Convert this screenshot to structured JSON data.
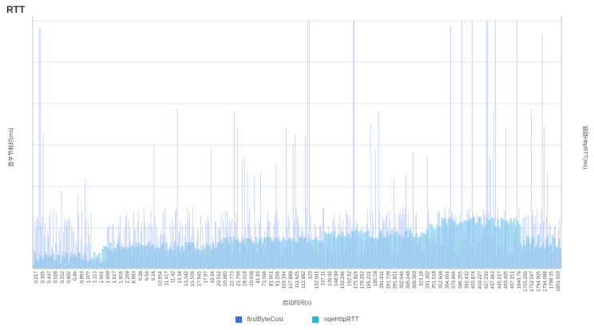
{
  "chart_data": {
    "type": "bar",
    "title": "RTT",
    "xlabel": "启动时间(s)",
    "ylabel_left": "首字节耗时(ms)",
    "ylabel_right": "链路HttpRTT(ms)",
    "x_ticks": [
      "0.217",
      "0.305",
      "0.447",
      "0.528",
      "0.552",
      "0.602",
      "0.86",
      "0.893",
      "1.077",
      "1.113",
      "1.601",
      "1.609",
      "1.917",
      "1.956",
      "2.269",
      "8.993",
      "9.08",
      "9.56",
      "9.16",
      "10.654",
      "11.417",
      "11.42",
      "13.34",
      "13.342",
      "15.509",
      "17.945",
      "17.97",
      "19.94",
      "20.512",
      "20.983",
      "22.773",
      "23.769",
      "28.418",
      "29.438",
      "41.93",
      "73.596",
      "81.661",
      "91.266",
      "103.194",
      "107.888",
      "111.625",
      "112.982",
      "123",
      "132.041",
      "137.11",
      "139.92",
      "148.99",
      "153.246",
      "162.92",
      "175.024",
      "179.262",
      "185.221",
      "185.58",
      "291.811",
      "291.729",
      "291.831",
      "302.646",
      "305.248",
      "309.369",
      "323.19",
      "341.302",
      "351.518",
      "352.608",
      "364.691",
      "370.966",
      "386.255",
      "392.432",
      "403.874",
      "419.227",
      "427.232",
      "437.963",
      "445.617",
      "460.405",
      "467.151",
      "1640.76",
      "1755.209",
      "1752.567",
      "1794.005",
      "1794.688",
      "1798.35",
      "1801.559"
    ],
    "grid": true,
    "legend_position": "bottom",
    "series": [
      {
        "name": "firstByteCost",
        "color": "#3b6fde"
      },
      {
        "name": "nqeHttpRTT",
        "color": "#1fb8d9"
      }
    ]
  }
}
